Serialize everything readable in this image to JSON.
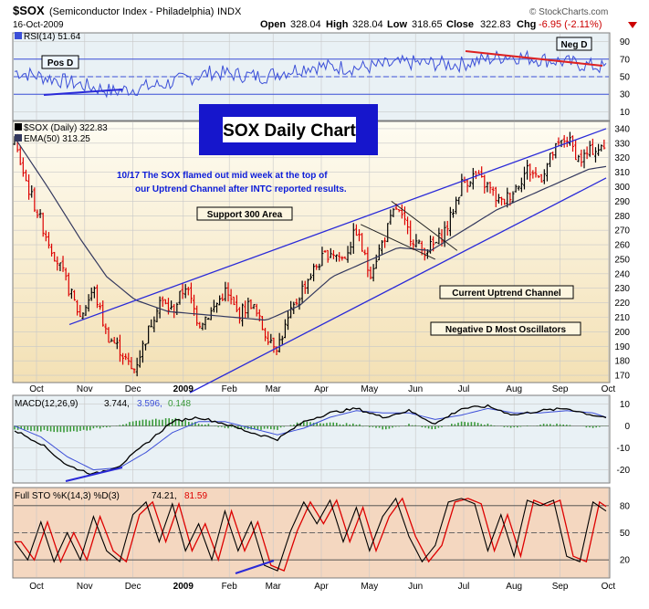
{
  "header": {
    "symbol": "$SOX",
    "name": "(Semiconductor Index - Philadelphia)",
    "exchange": "INDX",
    "date": "16-Oct-2009",
    "open_label": "Open",
    "open": "328.04",
    "high_label": "High",
    "high": "328.04",
    "low_label": "Low",
    "low": "318.65",
    "close_label": "Close",
    "close": "322.83",
    "chg_label": "Chg",
    "chg": "-6.95 (-2.11%)",
    "logo": "© StockCharts.com"
  },
  "colors": {
    "price_bg_top": "#fefcf2",
    "price_bg_bottom": "#f3e0b4",
    "indicator_bg": "#e9f1f5",
    "sto_bg": "#f4d7c0",
    "up_bar": "#000000",
    "down_bar": "#dd0000",
    "ema": "#33385e",
    "channel": "#2a2ad8",
    "rsi_line": "#3b4fd8",
    "macd_line": "#000000",
    "signal_line": "#3d4fd8",
    "histogram": "#3a9a3a",
    "sto_k": "#000000",
    "sto_d": "#dd0000",
    "annotation_blue": "#0b1bd8",
    "neg_d_line": "#dd2222",
    "title_box": "#1616cc"
  },
  "chart_data": [
    {
      "type": "line",
      "panel": "rsi",
      "legend": "RSI(14) 51.64",
      "y_ticks": [
        10,
        30,
        50,
        70,
        90
      ],
      "ylim": [
        0,
        100
      ],
      "levels": [
        30,
        50,
        70
      ],
      "annotations": [
        "Pos D",
        "Neg D"
      ],
      "x": [
        "Oct",
        "Nov",
        "Dec",
        "2009",
        "Feb",
        "Mar",
        "Apr",
        "May",
        "Jun",
        "Jul",
        "Aug",
        "Sep",
        "Oct"
      ],
      "values": [
        56,
        45,
        33,
        41,
        55,
        50,
        62,
        60,
        66,
        64,
        74,
        68,
        60
      ]
    },
    {
      "type": "ohlc",
      "panel": "price",
      "legend": "$SOX (Daily) 322.83",
      "ema_legend": "EMA(50) 313.25",
      "title": "SOX Daily Chart",
      "ylim": [
        165,
        345
      ],
      "y_ticks": [
        170,
        180,
        190,
        200,
        210,
        220,
        230,
        240,
        250,
        260,
        270,
        280,
        290,
        300,
        310,
        320,
        330,
        340
      ],
      "x_labels": [
        "Oct",
        "Nov",
        "Dec",
        "2009",
        "Feb",
        "Mar",
        "Apr",
        "May",
        "Jun",
        "Jul",
        "Aug",
        "Sep",
        "Oct"
      ],
      "anchors": [
        [
          0,
          330
        ],
        [
          6,
          300
        ],
        [
          14,
          268
        ],
        [
          22,
          240
        ],
        [
          30,
          210
        ],
        [
          36,
          230
        ],
        [
          42,
          198
        ],
        [
          48,
          188
        ],
        [
          54,
          172
        ],
        [
          60,
          196
        ],
        [
          66,
          222
        ],
        [
          72,
          214
        ],
        [
          78,
          232
        ],
        [
          84,
          206
        ],
        [
          90,
          214
        ],
        [
          96,
          228
        ],
        [
          102,
          212
        ],
        [
          108,
          220
        ],
        [
          114,
          200
        ],
        [
          120,
          190
        ],
        [
          126,
          212
        ],
        [
          132,
          232
        ],
        [
          138,
          246
        ],
        [
          144,
          256
        ],
        [
          150,
          250
        ],
        [
          156,
          270
        ],
        [
          162,
          240
        ],
        [
          168,
          262
        ],
        [
          174,
          286
        ],
        [
          180,
          268
        ],
        [
          186,
          256
        ],
        [
          192,
          260
        ],
        [
          198,
          274
        ],
        [
          204,
          302
        ],
        [
          210,
          308
        ],
        [
          216,
          300
        ],
        [
          222,
          288
        ],
        [
          228,
          298
        ],
        [
          234,
          312
        ],
        [
          240,
          306
        ],
        [
          246,
          324
        ],
        [
          252,
          334
        ],
        [
          258,
          318
        ],
        [
          264,
          326
        ],
        [
          270,
          326
        ]
      ],
      "ema_anchors": [
        [
          0,
          334
        ],
        [
          15,
          300
        ],
        [
          30,
          264
        ],
        [
          42,
          238
        ],
        [
          55,
          222
        ],
        [
          70,
          214
        ],
        [
          85,
          212
        ],
        [
          100,
          210
        ],
        [
          115,
          208
        ],
        [
          130,
          218
        ],
        [
          145,
          238
        ],
        [
          160,
          248
        ],
        [
          175,
          258
        ],
        [
          190,
          256
        ],
        [
          205,
          270
        ],
        [
          220,
          284
        ],
        [
          235,
          294
        ],
        [
          250,
          304
        ],
        [
          262,
          312
        ],
        [
          270,
          314
        ]
      ],
      "channel_upper": [
        [
          25,
          205
        ],
        [
          270,
          340
        ]
      ],
      "channel_lower": [
        [
          80,
          158
        ],
        [
          270,
          306
        ]
      ],
      "triangle_lines": [
        [
          [
            158,
            274
          ],
          [
            192,
            250
          ]
        ],
        [
          [
            172,
            290
          ],
          [
            202,
            256
          ]
        ]
      ],
      "annotations": {
        "comment_line1": "10/17  The SOX flamed out mid week at the top of",
        "comment_line2": "our Uptrend Channel after INTC reported results.",
        "support": "Support 300 Area",
        "uptrend": "Current Uptrend Channel",
        "negative": "Negative D Most Oscillators"
      }
    },
    {
      "type": "line",
      "panel": "macd",
      "legend_prefix": "MACD(12,26,9)",
      "legend_macd": "3.744,",
      "legend_signal": "3.596,",
      "legend_hist": "0.148",
      "y_ticks": [
        10,
        0,
        -10,
        -20
      ],
      "ylim": [
        -26,
        14
      ],
      "x": [
        "Oct",
        "Nov",
        "Dec",
        "2009",
        "Feb",
        "Mar",
        "Apr",
        "May",
        "Jun",
        "Jul",
        "Aug",
        "Sep",
        "Oct"
      ],
      "macd_anchors": [
        [
          0,
          -2
        ],
        [
          12,
          -8
        ],
        [
          24,
          -18
        ],
        [
          36,
          -22
        ],
        [
          48,
          -18
        ],
        [
          60,
          -8
        ],
        [
          72,
          2
        ],
        [
          84,
          4
        ],
        [
          96,
          1
        ],
        [
          108,
          -3
        ],
        [
          120,
          -6
        ],
        [
          132,
          2
        ],
        [
          144,
          6
        ],
        [
          156,
          8
        ],
        [
          168,
          4
        ],
        [
          180,
          7
        ],
        [
          192,
          1
        ],
        [
          204,
          8
        ],
        [
          216,
          9
        ],
        [
          228,
          5
        ],
        [
          240,
          7
        ],
        [
          252,
          8
        ],
        [
          264,
          5
        ],
        [
          270,
          4
        ]
      ],
      "signal_anchors": [
        [
          0,
          0
        ],
        [
          12,
          -5
        ],
        [
          24,
          -14
        ],
        [
          36,
          -20
        ],
        [
          48,
          -19
        ],
        [
          60,
          -12
        ],
        [
          72,
          -3
        ],
        [
          84,
          2
        ],
        [
          96,
          2
        ],
        [
          108,
          -1
        ],
        [
          120,
          -4
        ],
        [
          132,
          -1
        ],
        [
          144,
          4
        ],
        [
          156,
          7
        ],
        [
          168,
          6
        ],
        [
          180,
          6
        ],
        [
          192,
          3
        ],
        [
          204,
          5
        ],
        [
          216,
          8
        ],
        [
          228,
          6
        ],
        [
          240,
          6
        ],
        [
          252,
          7
        ],
        [
          264,
          6
        ],
        [
          270,
          4
        ]
      ]
    },
    {
      "type": "line",
      "panel": "sto",
      "legend_prefix": "Full STO %K(14,3) %D(3)",
      "legend_k": "74.21,",
      "legend_d": "81.59",
      "y_ticks": [
        80,
        50,
        20
      ],
      "ylim": [
        0,
        100
      ],
      "levels": [
        20,
        50,
        80
      ],
      "x": [
        "Oct",
        "Nov",
        "Dec",
        "2009",
        "Feb",
        "Mar",
        "Apr",
        "May",
        "Jun",
        "Jul",
        "Aug",
        "Sep",
        "Oct"
      ],
      "k_anchors": [
        [
          0,
          40
        ],
        [
          6,
          20
        ],
        [
          12,
          62
        ],
        [
          18,
          18
        ],
        [
          24,
          50
        ],
        [
          30,
          20
        ],
        [
          36,
          68
        ],
        [
          42,
          30
        ],
        [
          48,
          18
        ],
        [
          54,
          70
        ],
        [
          60,
          84
        ],
        [
          66,
          40
        ],
        [
          72,
          82
        ],
        [
          78,
          30
        ],
        [
          84,
          60
        ],
        [
          90,
          20
        ],
        [
          96,
          74
        ],
        [
          102,
          30
        ],
        [
          108,
          62
        ],
        [
          114,
          14
        ],
        [
          120,
          8
        ],
        [
          126,
          52
        ],
        [
          132,
          84
        ],
        [
          138,
          60
        ],
        [
          144,
          86
        ],
        [
          150,
          40
        ],
        [
          156,
          78
        ],
        [
          162,
          30
        ],
        [
          168,
          68
        ],
        [
          174,
          88
        ],
        [
          180,
          46
        ],
        [
          186,
          18
        ],
        [
          192,
          36
        ],
        [
          198,
          84
        ],
        [
          204,
          88
        ],
        [
          210,
          82
        ],
        [
          216,
          30
        ],
        [
          222,
          70
        ],
        [
          228,
          24
        ],
        [
          234,
          86
        ],
        [
          240,
          80
        ],
        [
          246,
          86
        ],
        [
          252,
          24
        ],
        [
          258,
          18
        ],
        [
          264,
          84
        ],
        [
          270,
          74
        ]
      ]
    }
  ],
  "axis": {
    "months": [
      "Oct",
      "Nov",
      "Dec",
      "2009",
      "Feb",
      "Mar",
      "Apr",
      "May",
      "Jun",
      "Jul",
      "Aug",
      "Sep",
      "Oct"
    ],
    "month_days": [
      0,
      22,
      44,
      67,
      88,
      108,
      130,
      152,
      173,
      195,
      218,
      239,
      261
    ]
  }
}
